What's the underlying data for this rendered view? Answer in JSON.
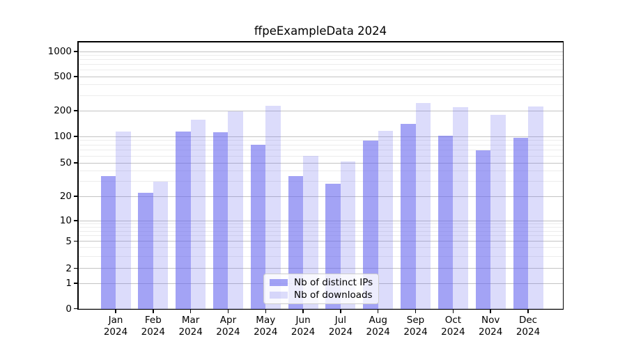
{
  "chart_data": {
    "type": "bar",
    "title": "ffpeExampleData 2024",
    "categories": [
      "Jan",
      "Feb",
      "Mar",
      "Apr",
      "May",
      "Jun",
      "Jul",
      "Aug",
      "Sep",
      "Oct",
      "Nov",
      "Dec"
    ],
    "category_year": "2024",
    "series": [
      {
        "name": "Nb of distinct IPs",
        "values": [
          35,
          22,
          114,
          112,
          80,
          35,
          28,
          90,
          140,
          101,
          70,
          96
        ],
        "color": "rgba(102,102,238,0.6)"
      },
      {
        "name": "Nb of downloads",
        "values": [
          115,
          30,
          158,
          198,
          229,
          60,
          52,
          116,
          245,
          218,
          179,
          222
        ],
        "color": "rgba(102,102,238,0.23)"
      }
    ],
    "yscale": "symlog",
    "yticks": [
      0,
      1,
      2,
      5,
      10,
      20,
      50,
      100,
      200,
      500,
      1000
    ],
    "minor_yticks": [
      3,
      4,
      6,
      7,
      8,
      9,
      30,
      40,
      60,
      70,
      80,
      90,
      300,
      400,
      600,
      700,
      800,
      900
    ],
    "ylim": [
      0,
      1327
    ],
    "grid": "both",
    "legend_position": "lower-center",
    "colors": {
      "major_grid": "#c3c3c3",
      "minor_grid": "#ececec",
      "axis": "#000000",
      "background": "#ffffff",
      "bar_base": "#6666ee"
    }
  }
}
